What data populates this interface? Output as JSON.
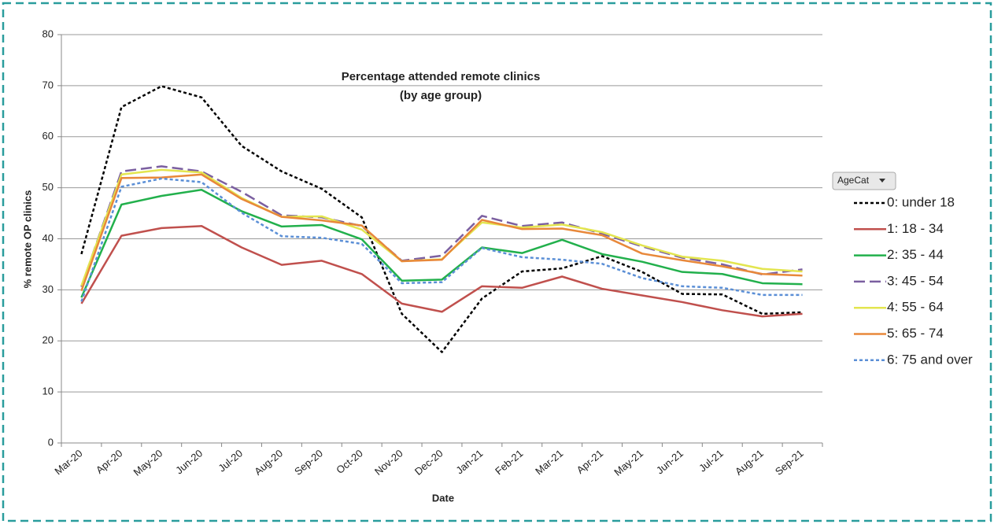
{
  "chart_data": {
    "type": "line",
    "title": "Percentage attended remote clinics",
    "subtitle": "(by age group)",
    "x_label": "Date",
    "y_label": "% remote OP clinics",
    "legend_title": "AgeCat",
    "legend_position": "right",
    "grid": true,
    "categories": [
      "Mar-20",
      "Apr-20",
      "May-20",
      "Jun-20",
      "Jul-20",
      "Aug-20",
      "Sep-20",
      "Oct-20",
      "Nov-20",
      "Dec-20",
      "Jan-21",
      "Feb-21",
      "Mar-21",
      "Apr-21",
      "May-21",
      "Jun-21",
      "Jul-21",
      "Aug-21",
      "Sep-21"
    ],
    "ylim": [
      0,
      80
    ],
    "yticks": [
      0,
      10,
      20,
      30,
      40,
      50,
      60,
      70,
      80
    ],
    "series": [
      {
        "name": "0: under 18",
        "color": "#000000",
        "dash": "dotted",
        "values": [
          37,
          65.8,
          69.9,
          67.7,
          58.2,
          53.2,
          49.8,
          44.2,
          25.3,
          17.8,
          28.3,
          33.6,
          34.2,
          36.6,
          33.5,
          29.2,
          29.1,
          25.3,
          25.6
        ]
      },
      {
        "name": "1: 18 - 34",
        "color": "#c0504d",
        "dash": "solid",
        "values": [
          27.3,
          40.6,
          42.1,
          42.5,
          38.3,
          34.9,
          35.7,
          33.1,
          27.3,
          25.7,
          30.7,
          30.4,
          32.6,
          30.2,
          28.9,
          27.6,
          26.0,
          24.8,
          25.3
        ]
      },
      {
        "name": "2: 35 - 44",
        "color": "#22b04c",
        "dash": "solid",
        "values": [
          28.5,
          46.7,
          48.4,
          49.6,
          45.4,
          42.4,
          42.7,
          39.9,
          31.8,
          32.0,
          38.3,
          37.2,
          39.8,
          37.0,
          35.5,
          33.5,
          33.1,
          31.3,
          31.1
        ]
      },
      {
        "name": "3: 45 - 54",
        "color": "#7b5fa0",
        "dash": "long",
        "values": [
          30.6,
          53.2,
          54.2,
          53.2,
          49.2,
          44.6,
          44.2,
          42.5,
          35.7,
          36.7,
          44.5,
          42.5,
          43.2,
          41.0,
          38.5,
          36.3,
          35.0,
          33.0,
          34.0
        ]
      },
      {
        "name": "4: 55 - 64",
        "color": "#e3e54f",
        "dash": "solid",
        "values": [
          30.8,
          52.6,
          53.5,
          53.0,
          48.0,
          44.3,
          44.4,
          41.8,
          35.6,
          36.0,
          43.2,
          42.2,
          42.8,
          41.3,
          38.7,
          36.5,
          35.7,
          34.1,
          33.6
        ]
      },
      {
        "name": "5: 65 - 74",
        "color": "#e8883a",
        "dash": "solid",
        "values": [
          29.8,
          51.9,
          52.0,
          52.6,
          47.8,
          44.3,
          43.6,
          42.6,
          35.6,
          35.9,
          43.7,
          41.9,
          42.0,
          40.7,
          37.1,
          35.8,
          34.6,
          33.1,
          32.8
        ]
      },
      {
        "name": "6: 75 and over",
        "color": "#5b8fd6",
        "dash": "dotted",
        "values": [
          27.7,
          50.2,
          51.8,
          51.1,
          45.1,
          40.5,
          40.2,
          39.0,
          31.3,
          31.5,
          38.2,
          36.4,
          35.9,
          35.1,
          32.3,
          30.7,
          30.4,
          29.0,
          29.0
        ]
      }
    ]
  }
}
